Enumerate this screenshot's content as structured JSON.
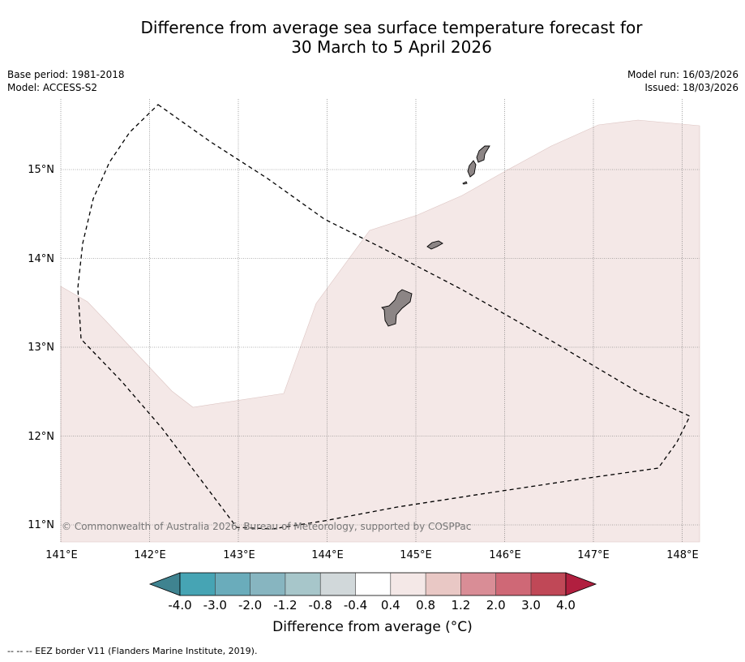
{
  "title": {
    "line1": "Difference from average sea surface temperature forecast for",
    "line2": "30 March to 5 April 2026"
  },
  "meta": {
    "base_period": "Base period: 1981-2018",
    "model": "Model: ACCESS-S2",
    "model_run": "Model run: 16/03/2026",
    "issued": "Issued: 18/03/2026"
  },
  "map": {
    "lat_labels": [
      "15°N",
      "14°N",
      "13°N",
      "12°N",
      "11°N"
    ],
    "lon_labels": [
      "141°E",
      "142°E",
      "143°E",
      "144°E",
      "145°E",
      "146°E",
      "147°E",
      "148°E"
    ],
    "copyright": "© Commonwealth of Australia 2026, Bureau of Meteorology, supported by COSPPac",
    "anomaly_fill_color": "#f4e8e7",
    "land_color": "#8c8585"
  },
  "colorbar": {
    "tick_labels": [
      "-4.0",
      "-3.0",
      "-2.0",
      "-1.2",
      "-0.8",
      "-0.4",
      "0.4",
      "0.8",
      "1.2",
      "2.0",
      "3.0",
      "4.0"
    ],
    "colors": [
      "#46a4b4",
      "#6aacbb",
      "#87b5c0",
      "#a7c6ca",
      "#d1d8da",
      "#ffffff",
      "#f4e8e7",
      "#e9c8c5",
      "#d98d96",
      "#cf6876",
      "#c04857"
    ],
    "under_color": "#3f8390",
    "over_color": "#b11f3f",
    "label": "Difference from average (°C)"
  },
  "legend": {
    "eez_text": "--  --  -- EEZ border V11 (Flanders Marine Institute, 2019)."
  }
}
